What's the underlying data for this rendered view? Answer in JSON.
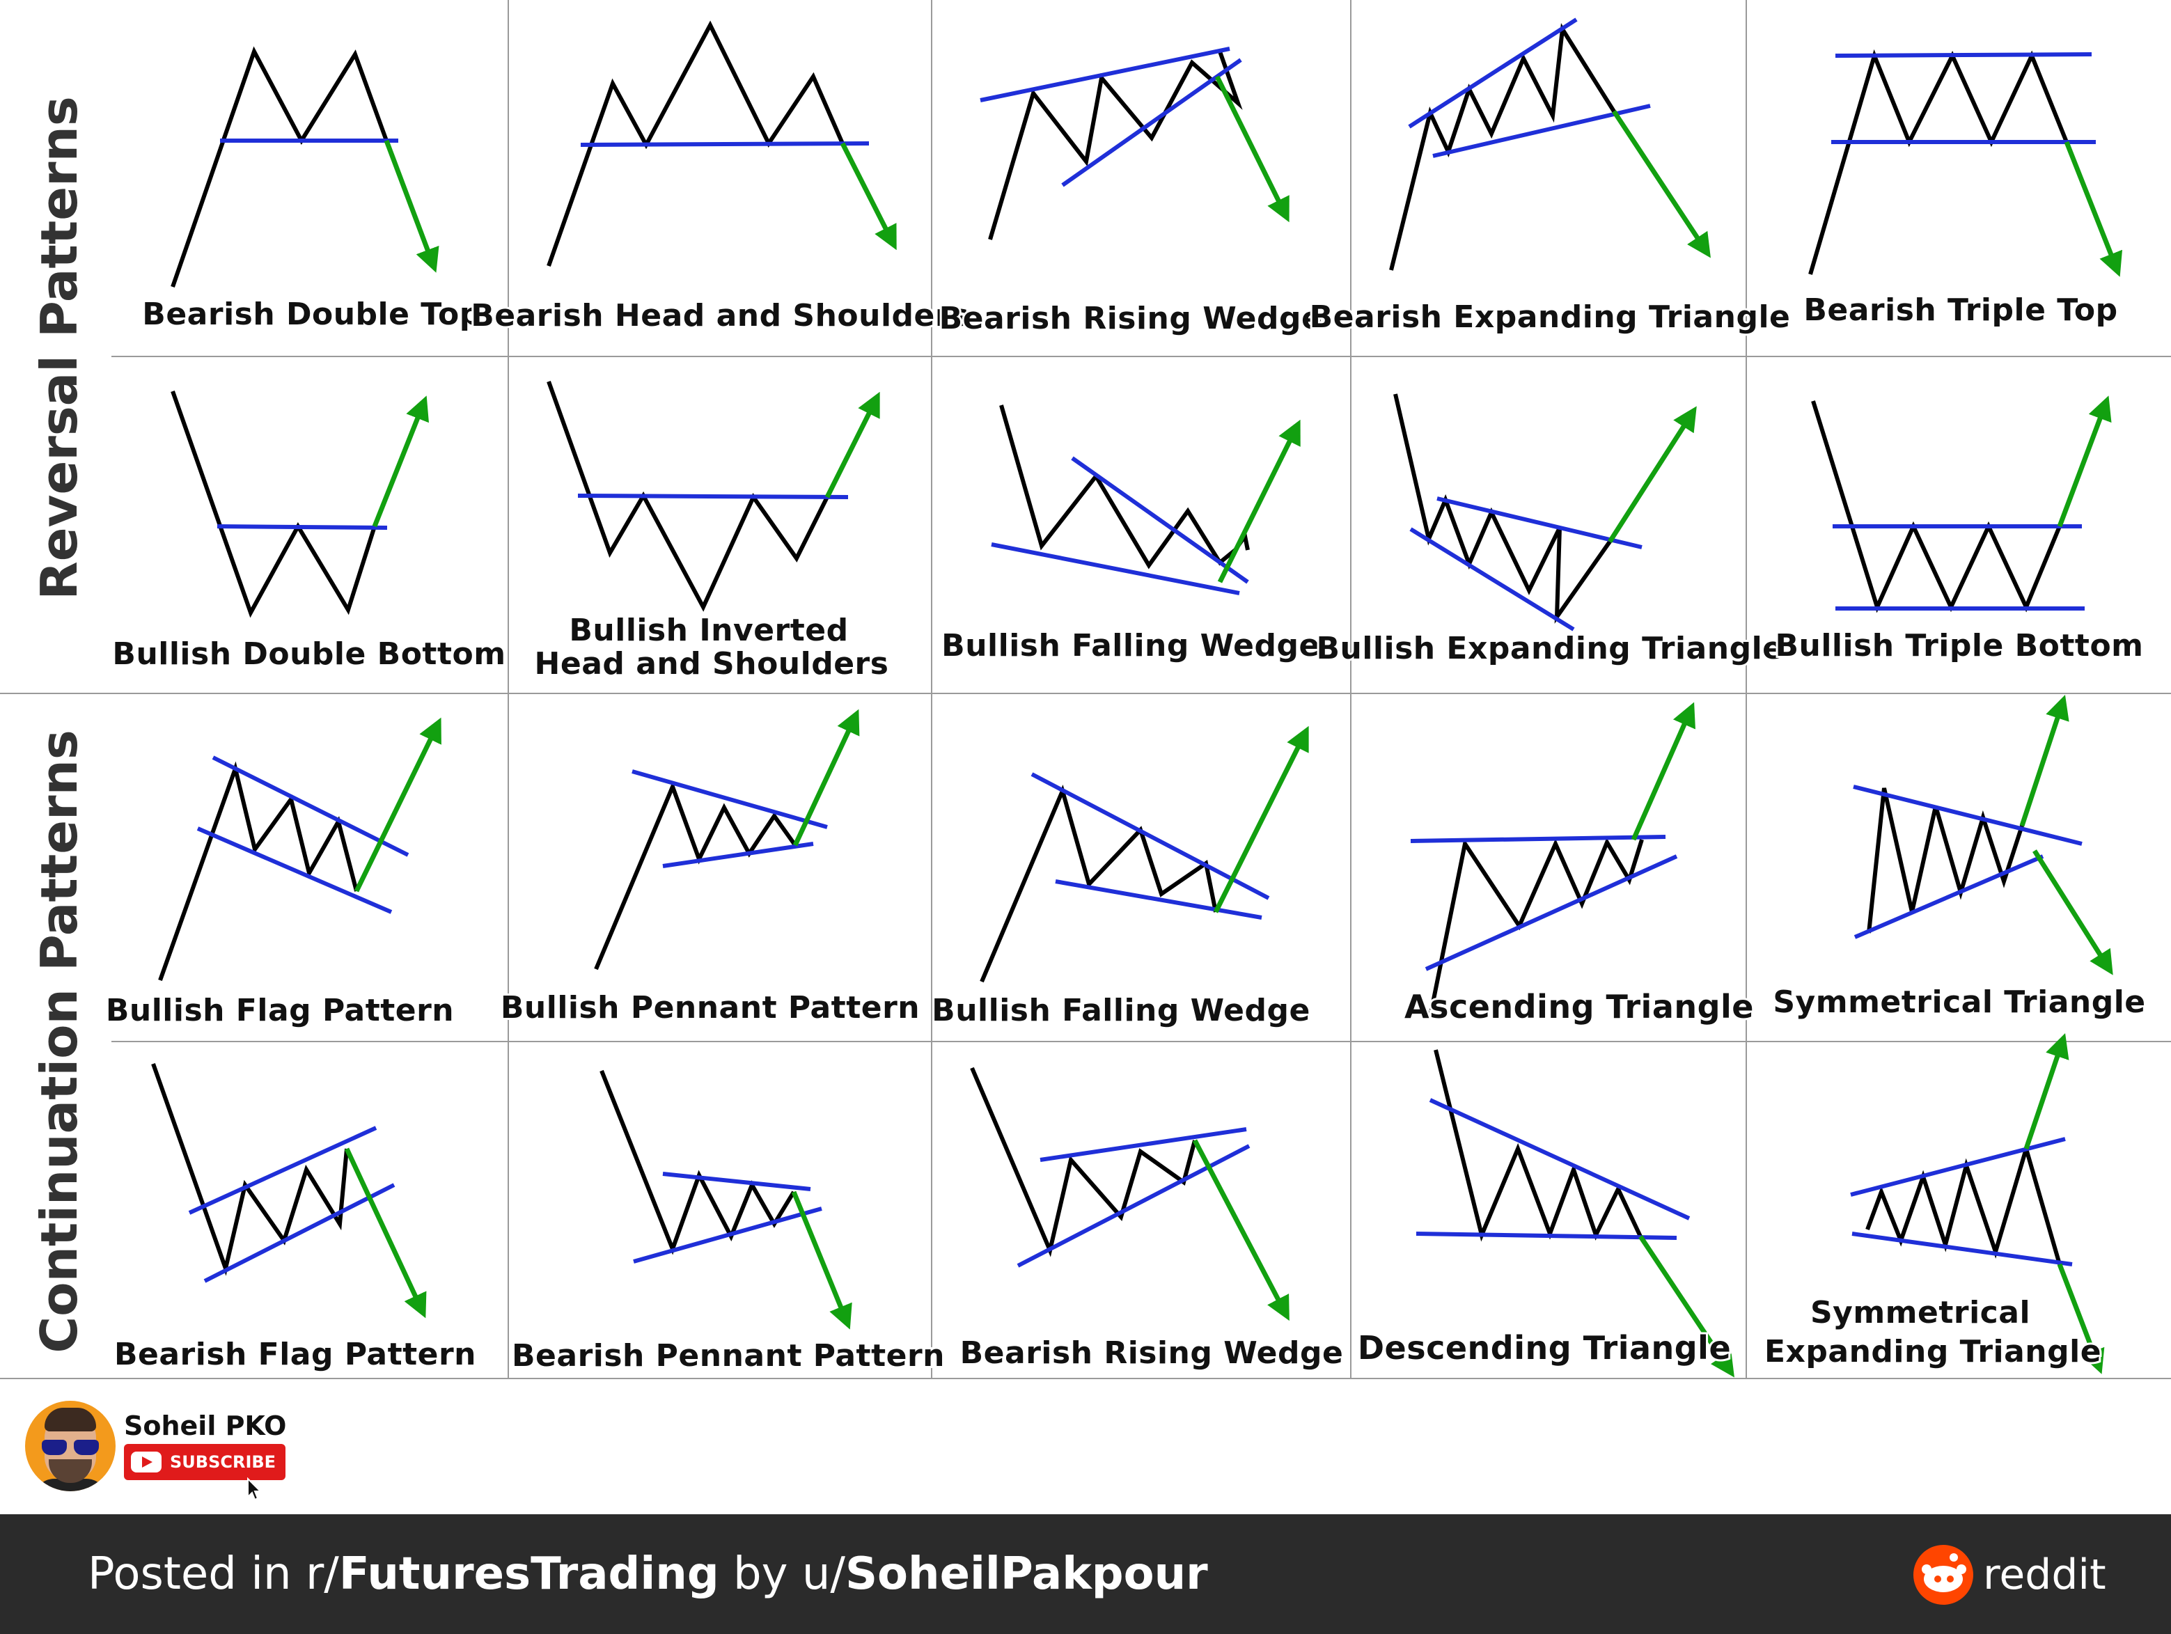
{
  "sections": {
    "reversal": "Reversal Patterns",
    "continuation": "Continuation Patterns"
  },
  "rows": [
    {
      "section": "reversal",
      "patterns": [
        {
          "id": "bearish-double-top",
          "label": [
            "Bearish Double Top"
          ],
          "direction": "down"
        },
        {
          "id": "bearish-head-and-shoulders",
          "label": [
            "Bearish Head and Shoulders"
          ],
          "direction": "down"
        },
        {
          "id": "bearish-rising-wedge",
          "label": [
            "Bearish Rising Wedge"
          ],
          "direction": "down"
        },
        {
          "id": "bearish-expanding-triangle",
          "label": [
            "Bearish Expanding Triangle"
          ],
          "direction": "down"
        },
        {
          "id": "bearish-triple-top",
          "label": [
            "Bearish Triple Top"
          ],
          "direction": "down"
        }
      ]
    },
    {
      "section": "reversal",
      "patterns": [
        {
          "id": "bullish-double-bottom",
          "label": [
            "Bullish Double Bottom"
          ],
          "direction": "up"
        },
        {
          "id": "bullish-inverted-head-and-shoulders",
          "label": [
            "Bullish Inverted",
            "Head and Shoulders"
          ],
          "direction": "up"
        },
        {
          "id": "bullish-falling-wedge",
          "label": [
            "Bullish Falling Wedge"
          ],
          "direction": "up"
        },
        {
          "id": "bullish-expanding-triangle",
          "label": [
            "Bullish Expanding Triangle"
          ],
          "direction": "up"
        },
        {
          "id": "bullish-triple-bottom",
          "label": [
            "Bullish Triple Bottom"
          ],
          "direction": "up"
        }
      ]
    },
    {
      "section": "continuation",
      "patterns": [
        {
          "id": "bullish-flag-pattern",
          "label": [
            "Bullish Flag Pattern"
          ],
          "direction": "up"
        },
        {
          "id": "bullish-pennant-pattern",
          "label": [
            "Bullish Pennant Pattern"
          ],
          "direction": "up"
        },
        {
          "id": "bullish-falling-wedge-continuation",
          "label": [
            "Bullish Falling Wedge"
          ],
          "direction": "up"
        },
        {
          "id": "ascending-triangle",
          "label": [
            "Ascending Triangle"
          ],
          "direction": "up"
        },
        {
          "id": "symmetrical-triangle",
          "label": [
            "Symmetrical Triangle"
          ],
          "direction": "both"
        }
      ]
    },
    {
      "section": "continuation",
      "patterns": [
        {
          "id": "bearish-flag-pattern",
          "label": [
            "Bearish Flag Pattern"
          ],
          "direction": "down"
        },
        {
          "id": "bearish-pennant-pattern",
          "label": [
            "Bearish Pennant Pattern"
          ],
          "direction": "down"
        },
        {
          "id": "bearish-rising-wedge-continuation",
          "label": [
            "Bearish Rising Wedge"
          ],
          "direction": "down"
        },
        {
          "id": "descending-triangle",
          "label": [
            "Descending Triangle"
          ],
          "direction": "down"
        },
        {
          "id": "symmetrical-expanding-triangle",
          "label": [
            "Symmetrical",
            "Expanding Triangle"
          ],
          "direction": "both"
        }
      ]
    }
  ],
  "colors": {
    "price_line": "#000000",
    "trend_line": "#1f2fd8",
    "breakout_arrow": "#12a010",
    "grid": "#9a9a9a",
    "footer_bg": "#2b2b2b",
    "subscribe_bg": "#e01b1b",
    "reddit_orange": "#ff4500"
  },
  "author": {
    "name": "Soheil PKO",
    "subscribe_label": "SUBSCRIBE",
    "avatar_icon": "avatar-photo",
    "youtube_icon": "youtube-play-icon"
  },
  "footer": {
    "prefix": "Posted in r/",
    "subreddit": "FuturesTrading",
    "by": " by u/",
    "user": "SoheilPakpour",
    "brand": "reddit"
  }
}
